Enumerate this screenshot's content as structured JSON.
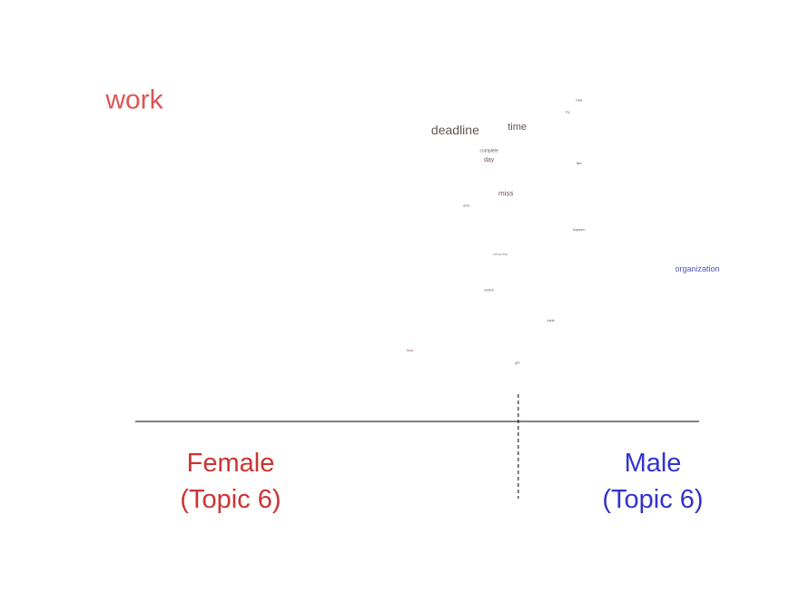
{
  "chart_data": {
    "type": "scatter",
    "title": "",
    "xlabel": "",
    "ylabel": "",
    "colors": {
      "female": "#cc3333",
      "male": "#3333cc",
      "axis": "#000000"
    },
    "left_label": {
      "line1": "Female",
      "line2": "(Topic 6)"
    },
    "right_label": {
      "line1": "Male",
      "line2": "(Topic 6)"
    },
    "xlim": [
      0,
      1
    ],
    "ylim": [
      0,
      1
    ],
    "divider_x": 0.682,
    "words": [
      {
        "text": "work",
        "x": 0.0,
        "y": 0.97,
        "size": 30,
        "color": "#dd5555"
      },
      {
        "text": "deadline",
        "x": 0.57,
        "y": 0.87,
        "size": 14,
        "color": "#665555"
      },
      {
        "text": "time",
        "x": 0.68,
        "y": 0.88,
        "size": 11,
        "color": "#665555"
      },
      {
        "text": "complete",
        "x": 0.63,
        "y": 0.8,
        "size": 5,
        "color": "#665566"
      },
      {
        "text": "day",
        "x": 0.63,
        "y": 0.77,
        "size": 7,
        "color": "#775566"
      },
      {
        "text": "miss",
        "x": 0.66,
        "y": 0.66,
        "size": 8,
        "color": "#775566"
      },
      {
        "text": "able",
        "x": 0.59,
        "y": 0.62,
        "size": 4,
        "color": "#776666"
      },
      {
        "text": "bad",
        "x": 0.79,
        "y": 0.97,
        "size": 4,
        "color": "#665566"
      },
      {
        "text": "try",
        "x": 0.77,
        "y": 0.93,
        "size": 4,
        "color": "#665566"
      },
      {
        "text": "like",
        "x": 0.79,
        "y": 0.76,
        "size": 4,
        "color": "#665566"
      },
      {
        "text": "happen",
        "x": 0.79,
        "y": 0.54,
        "size": 4,
        "color": "#665566"
      },
      {
        "text": "company",
        "x": 0.65,
        "y": 0.46,
        "size": 4,
        "color": "#888899"
      },
      {
        "text": "organization",
        "x": 1.0,
        "y": 0.41,
        "size": 9,
        "color": "#5555bb"
      },
      {
        "text": "switch",
        "x": 0.63,
        "y": 0.34,
        "size": 4,
        "color": "#665566"
      },
      {
        "text": "style",
        "x": 0.74,
        "y": 0.24,
        "size": 4,
        "color": "#665566"
      },
      {
        "text": "lose",
        "x": 0.49,
        "y": 0.14,
        "size": 4,
        "color": "#aa4444"
      },
      {
        "text": "get",
        "x": 0.68,
        "y": 0.1,
        "size": 4,
        "color": "#665566"
      }
    ]
  }
}
